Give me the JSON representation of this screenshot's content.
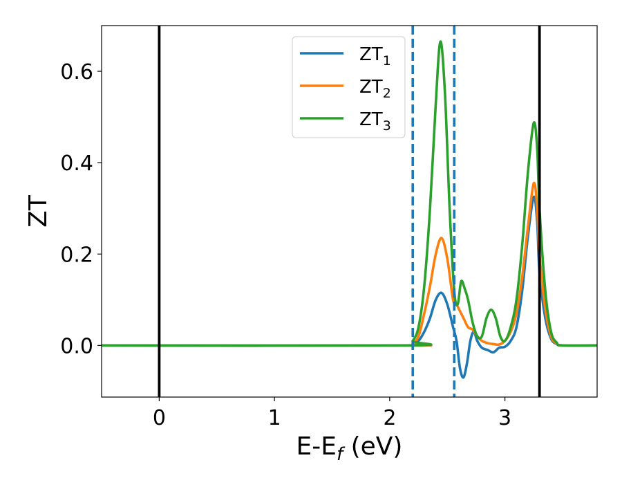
{
  "chart_data": {
    "type": "line",
    "xlabel": "E-E",
    "xlabel_sub": "f",
    "xlabel_unit": " (eV)",
    "ylabel": "ZT",
    "xlim": [
      -0.5,
      3.8
    ],
    "ylim": [
      -0.113,
      0.7
    ],
    "xticks": [
      0,
      1,
      2,
      3
    ],
    "xtick_labels": [
      "0",
      "1",
      "2",
      "3"
    ],
    "yticks": [
      0.0,
      0.2,
      0.4,
      0.6
    ],
    "ytick_labels": [
      "0.0",
      "0.2",
      "0.4",
      "0.6"
    ],
    "grid": false,
    "legend_position": "top-center",
    "vlines": [
      {
        "x": 0.0,
        "style": "solid",
        "color": "#000000"
      },
      {
        "x": 3.3,
        "style": "solid",
        "color": "#000000"
      },
      {
        "x": 2.2,
        "style": "dashed",
        "color": "#1f77b4"
      },
      {
        "x": 2.56,
        "style": "dashed",
        "color": "#1f77b4"
      }
    ],
    "series": [
      {
        "name": "ZT",
        "subscript": "1",
        "color": "#1f77b4",
        "points": [
          [
            -0.5,
            0
          ],
          [
            2.15,
            0
          ],
          [
            2.2,
            0.002
          ],
          [
            2.25,
            0.01
          ],
          [
            2.3,
            0.03
          ],
          [
            2.35,
            0.06
          ],
          [
            2.4,
            0.1
          ],
          [
            2.45,
            0.115
          ],
          [
            2.5,
            0.09
          ],
          [
            2.55,
            0.04
          ],
          [
            2.58,
            0.01
          ],
          [
            2.61,
            -0.05
          ],
          [
            2.64,
            -0.07
          ],
          [
            2.67,
            -0.04
          ],
          [
            2.7,
            0.01
          ],
          [
            2.73,
            0.03
          ],
          [
            2.76,
            0.01
          ],
          [
            2.8,
            -0.005
          ],
          [
            2.85,
            -0.01
          ],
          [
            2.9,
            -0.015
          ],
          [
            2.95,
            -0.005
          ],
          [
            3.0,
            -0.003
          ],
          [
            3.05,
            0.01
          ],
          [
            3.1,
            0.04
          ],
          [
            3.15,
            0.12
          ],
          [
            3.2,
            0.24
          ],
          [
            3.25,
            0.325
          ],
          [
            3.28,
            0.27
          ],
          [
            3.3,
            0.16
          ],
          [
            3.35,
            0.06
          ],
          [
            3.4,
            0.015
          ],
          [
            3.45,
            0.003
          ],
          [
            3.5,
            0
          ],
          [
            3.8,
            0
          ]
        ]
      },
      {
        "name": "ZT",
        "subscript": "2",
        "color": "#ff7f0e",
        "points": [
          [
            -0.5,
            0
          ],
          [
            2.15,
            0
          ],
          [
            2.2,
            0.004
          ],
          [
            2.25,
            0.02
          ],
          [
            2.3,
            0.07
          ],
          [
            2.35,
            0.13
          ],
          [
            2.4,
            0.2
          ],
          [
            2.45,
            0.235
          ],
          [
            2.5,
            0.19
          ],
          [
            2.55,
            0.1
          ],
          [
            2.58,
            0.09
          ],
          [
            2.61,
            0.075
          ],
          [
            2.64,
            0.06
          ],
          [
            2.68,
            0.04
          ],
          [
            2.72,
            0.035
          ],
          [
            2.76,
            0.02
          ],
          [
            2.8,
            0.01
          ],
          [
            2.85,
            0.005
          ],
          [
            2.9,
            0.003
          ],
          [
            2.95,
            0.002
          ],
          [
            3.0,
            0.01
          ],
          [
            3.05,
            0.03
          ],
          [
            3.1,
            0.07
          ],
          [
            3.15,
            0.15
          ],
          [
            3.2,
            0.26
          ],
          [
            3.25,
            0.355
          ],
          [
            3.28,
            0.3
          ],
          [
            3.3,
            0.2
          ],
          [
            3.35,
            0.08
          ],
          [
            3.4,
            0.02
          ],
          [
            3.45,
            0.004
          ],
          [
            3.5,
            0
          ],
          [
            3.8,
            0
          ]
        ]
      },
      {
        "name": "ZT",
        "subscript": "3",
        "color": "#2ca02c",
        "points": [
          [
            -0.5,
            0
          ],
          [
            2.15,
            0
          ],
          [
            2.2,
            0.01
          ],
          [
            2.25,
            0.04
          ],
          [
            2.3,
            0.13
          ],
          [
            2.35,
            0.3
          ],
          [
            2.4,
            0.53
          ],
          [
            2.44,
            0.665
          ],
          [
            2.48,
            0.55
          ],
          [
            2.52,
            0.3
          ],
          [
            2.56,
            0.12
          ],
          [
            2.59,
            0.09
          ],
          [
            2.62,
            0.14
          ],
          [
            2.65,
            0.125
          ],
          [
            2.68,
            0.1
          ],
          [
            2.72,
            0.05
          ],
          [
            2.76,
            0.02
          ],
          [
            2.8,
            0.02
          ],
          [
            2.84,
            0.06
          ],
          [
            2.88,
            0.078
          ],
          [
            2.92,
            0.06
          ],
          [
            2.96,
            0.02
          ],
          [
            3.0,
            0.01
          ],
          [
            3.05,
            0.04
          ],
          [
            3.1,
            0.1
          ],
          [
            3.15,
            0.22
          ],
          [
            3.2,
            0.38
          ],
          [
            3.25,
            0.487
          ],
          [
            3.28,
            0.43
          ],
          [
            3.3,
            0.3
          ],
          [
            3.35,
            0.12
          ],
          [
            3.4,
            0.03
          ],
          [
            3.45,
            0.006
          ],
          [
            3.5,
            0
          ],
          [
            3.8,
            0
          ]
        ]
      }
    ]
  }
}
